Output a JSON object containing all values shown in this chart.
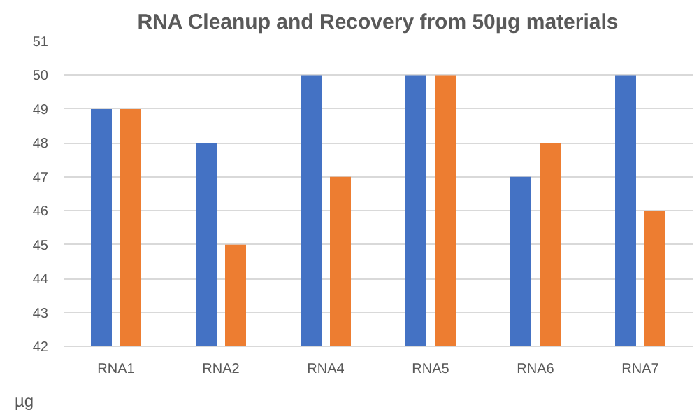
{
  "chart_data": {
    "type": "bar",
    "title": "RNA Cleanup and Recovery from 50µg materials",
    "ylabel": "µg",
    "categories": [
      "RNA1",
      "RNA2",
      "RNA4",
      "RNA5",
      "RNA6",
      "RNA7"
    ],
    "series": [
      {
        "color": "#4472c4",
        "values": [
          49,
          48,
          50,
          50,
          47,
          50
        ]
      },
      {
        "color": "#ed7d31",
        "values": [
          49,
          45,
          47,
          50,
          48,
          46
        ]
      }
    ],
    "ylim": [
      42,
      51
    ],
    "yticks": [
      42,
      43,
      44,
      45,
      46,
      47,
      48,
      49,
      50,
      51
    ],
    "grid": "y"
  }
}
